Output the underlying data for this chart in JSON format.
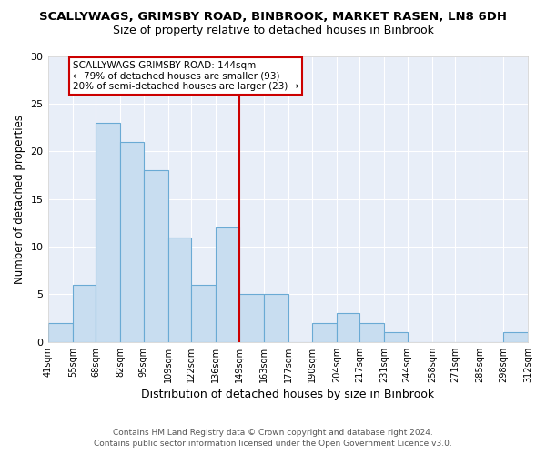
{
  "title": "SCALLYWAGS, GRIMSBY ROAD, BINBROOK, MARKET RASEN, LN8 6DH",
  "subtitle": "Size of property relative to detached houses in Binbrook",
  "xlabel": "Distribution of detached houses by size in Binbrook",
  "ylabel": "Number of detached properties",
  "bar_color": "#c8ddf0",
  "bar_edge_color": "#6aaad4",
  "vline_color": "#cc0000",
  "annotation_lines": [
    "SCALLYWAGS GRIMSBY ROAD: 144sqm",
    "← 79% of detached houses are smaller (93)",
    "20% of semi-detached houses are larger (23) →"
  ],
  "bin_edges": [
    41,
    55,
    68,
    82,
    95,
    109,
    122,
    136,
    149,
    163,
    177,
    190,
    204,
    217,
    231,
    244,
    258,
    271,
    285,
    298,
    312
  ],
  "counts": [
    2,
    6,
    23,
    21,
    18,
    11,
    6,
    12,
    5,
    5,
    0,
    2,
    3,
    2,
    1,
    0,
    0,
    0,
    0,
    1
  ],
  "ylim": [
    0,
    30
  ],
  "yticks": [
    0,
    5,
    10,
    15,
    20,
    25,
    30
  ],
  "footer_line1": "Contains HM Land Registry data © Crown copyright and database right 2024.",
  "footer_line2": "Contains public sector information licensed under the Open Government Licence v3.0.",
  "bg_color": "#ffffff",
  "plot_bg_color": "#e8eef8"
}
